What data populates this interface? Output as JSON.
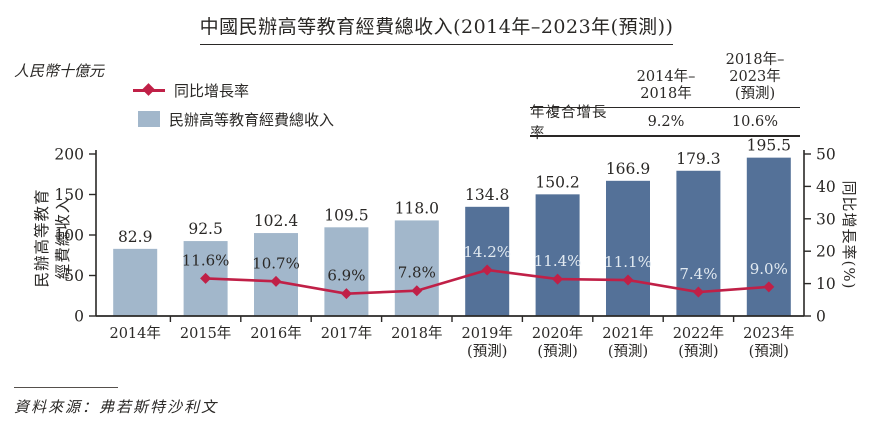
{
  "title": "中國民辦高等教育經費總收入(2014年–2023年(預測))",
  "unit_label": "人民幣十億元",
  "legend": {
    "line_label": "同比增長率",
    "bar_label": "民辦高等教育經費總收入"
  },
  "cagr_table": {
    "row_label": "年複合增長率",
    "columns": [
      {
        "header_line1": "",
        "header_line2": "2014年–2018年",
        "value": "9.2%"
      },
      {
        "header_line1": "2018年–2023年",
        "header_line2": "(預測)",
        "value": "10.6%"
      }
    ]
  },
  "axes": {
    "left_label_line1": "民辦高等教育",
    "left_label_line2": "經費總收入",
    "right_label": "同比增長率(%)",
    "left_ticks": [
      0,
      50,
      100,
      150,
      200
    ],
    "right_ticks": [
      0,
      10,
      20,
      30,
      40,
      50
    ]
  },
  "source": "資料來源：弗若斯特沙利文",
  "colors": {
    "bar_actual": "#a2b7cb",
    "bar_forecast": "#547198",
    "line": "#c02047",
    "text": "#2a2826",
    "axis": "#2a2826",
    "label_on_forecast": "#e2eaf1"
  },
  "chart_data": {
    "type": "bar+line",
    "title": "中國民辦高等教育經費總收入(2014年–2023年(預測))",
    "unit": "人民幣十億元",
    "categories": [
      {
        "label": "2014年",
        "sublabel": "",
        "forecast": false
      },
      {
        "label": "2015年",
        "sublabel": "",
        "forecast": false
      },
      {
        "label": "2016年",
        "sublabel": "",
        "forecast": false
      },
      {
        "label": "2017年",
        "sublabel": "",
        "forecast": false
      },
      {
        "label": "2018年",
        "sublabel": "",
        "forecast": false
      },
      {
        "label": "2019年",
        "sublabel": "(預測)",
        "forecast": true
      },
      {
        "label": "2020年",
        "sublabel": "(預測)",
        "forecast": true
      },
      {
        "label": "2021年",
        "sublabel": "(預測)",
        "forecast": true
      },
      {
        "label": "2022年",
        "sublabel": "(預測)",
        "forecast": true
      },
      {
        "label": "2023年",
        "sublabel": "(預測)",
        "forecast": true
      }
    ],
    "series": [
      {
        "name": "民辦高等教育經費總收入",
        "type": "bar",
        "axis": "left",
        "values": [
          82.9,
          92.5,
          102.4,
          109.5,
          118.0,
          134.8,
          150.2,
          166.9,
          179.3,
          195.5
        ]
      },
      {
        "name": "同比增長率",
        "type": "line",
        "axis": "right",
        "unit": "%",
        "values": [
          null,
          11.6,
          10.7,
          6.9,
          7.8,
          14.2,
          11.4,
          11.1,
          7.4,
          9.0
        ]
      }
    ],
    "left_axis": {
      "label": "民辦高等教育經費總收入",
      "range": [
        0,
        200
      ]
    },
    "right_axis": {
      "label": "同比增長率(%)",
      "range": [
        0,
        50
      ]
    },
    "legend_position": "top-left",
    "grid": false
  }
}
